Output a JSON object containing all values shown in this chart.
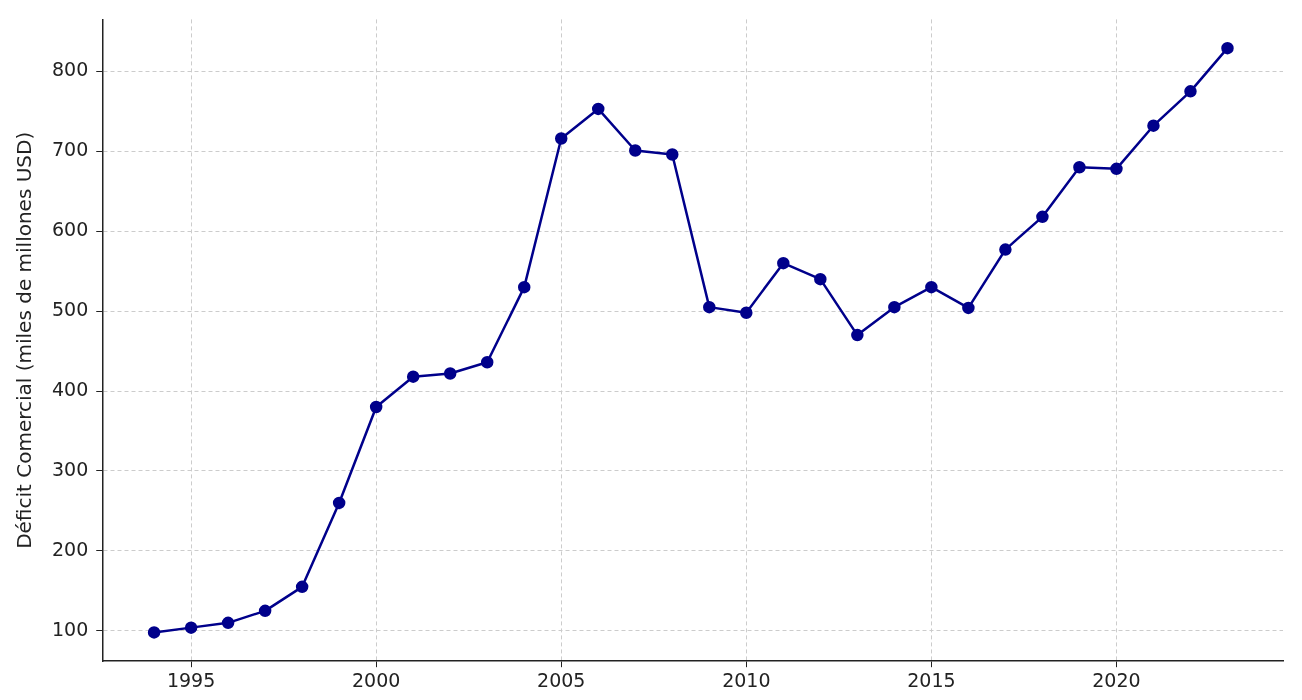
{
  "chart_data": {
    "type": "line",
    "ylabel": "Déficit Comercial (miles de millones USD)",
    "x": [
      1994,
      1995,
      1996,
      1997,
      1998,
      1999,
      2000,
      2001,
      2002,
      2003,
      2004,
      2005,
      2006,
      2007,
      2008,
      2009,
      2010,
      2011,
      2012,
      2013,
      2014,
      2015,
      2016,
      2017,
      2018,
      2019,
      2020,
      2021,
      2022,
      2023
    ],
    "series": [
      {
        "color": "#00008b",
        "values": [
          98,
          104,
          110,
          125,
          155,
          260,
          380,
          418,
          422,
          436,
          530,
          716,
          753,
          701,
          696,
          505,
          498,
          560,
          540,
          470,
          505,
          530,
          504,
          577,
          618,
          680,
          678,
          732,
          775,
          829
        ]
      }
    ],
    "xlim": [
      1992.6,
      2024.5
    ],
    "xticks": [
      1995,
      2000,
      2005,
      2010,
      2015,
      2020
    ],
    "ylim": [
      62,
      865
    ],
    "yticks": [
      100,
      200,
      300,
      400,
      500,
      600,
      700,
      800
    ],
    "grid": true,
    "marker": "circle",
    "line_style": "solid"
  }
}
